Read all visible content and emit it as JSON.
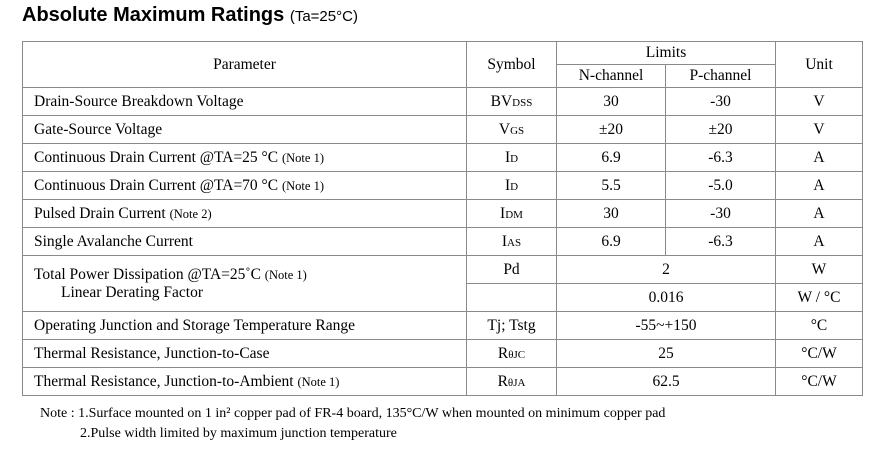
{
  "title": {
    "text": "Absolute Maximum Ratings",
    "condition": "(Ta=25°C)"
  },
  "table": {
    "headers": {
      "parameter": "Parameter",
      "symbol": "Symbol",
      "limits": "Limits",
      "n_channel": "N-channel",
      "p_channel": "P-channel",
      "unit": "Unit"
    },
    "rows": [
      {
        "parameter": "Drain-Source Breakdown Voltage",
        "symbol": "BV",
        "symbol_sub": "DSS",
        "n": "30",
        "p": "-30",
        "unit": "V"
      },
      {
        "parameter": "Gate-Source Voltage",
        "symbol": "V",
        "symbol_sub": "GS",
        "n": "±20",
        "p": "±20",
        "unit": "V"
      },
      {
        "parameter": "Continuous Drain Current @TA=25 °C",
        "note": "(Note 1)",
        "symbol": "I",
        "symbol_sub": "D",
        "n": "6.9",
        "p": "-6.3",
        "unit": "A"
      },
      {
        "parameter": "Continuous Drain Current @TA=70 °C",
        "note": "(Note 1)",
        "symbol": "I",
        "symbol_sub": "D",
        "n": "5.5",
        "p": "-5.0",
        "unit": "A"
      },
      {
        "parameter": "Pulsed Drain Current",
        "note": "(Note 2)",
        "symbol": "I",
        "symbol_sub": "DM",
        "n": "30",
        "p": "-30",
        "unit": "A"
      },
      {
        "parameter": "Single Avalanche Current",
        "symbol": "I",
        "symbol_sub": "AS",
        "n": "6.9",
        "p": "-6.3",
        "unit": "A"
      },
      {
        "parameter": "Total Power Dissipation  @TA=25˚C",
        "note": "(Note 1)",
        "sub_parameter": "Linear Derating Factor",
        "symbol": "Pd",
        "value": "2",
        "unit": "W",
        "sub_value": "0.016",
        "sub_unit": "W / °C"
      },
      {
        "parameter": "Operating Junction and Storage Temperature Range",
        "symbol": "Tj; Tstg",
        "value": "-55~+150",
        "unit": "°C"
      },
      {
        "parameter": "Thermal Resistance, Junction-to-Case",
        "symbol": "R",
        "symbol_sub": "θJC",
        "value": "25",
        "unit": "°C/W"
      },
      {
        "parameter": "Thermal Resistance, Junction-to-Ambient",
        "note": "(Note 1)",
        "symbol": "R",
        "symbol_sub": "θJA",
        "value": "62.5",
        "unit": "°C/W"
      }
    ]
  },
  "notes": {
    "label": "Note :",
    "items": [
      "1.Surface mounted on 1 in² copper pad of FR-4 board, 135°C/W when mounted on minimum copper pad",
      "2.Pulse width limited by maximum junction temperature"
    ]
  }
}
